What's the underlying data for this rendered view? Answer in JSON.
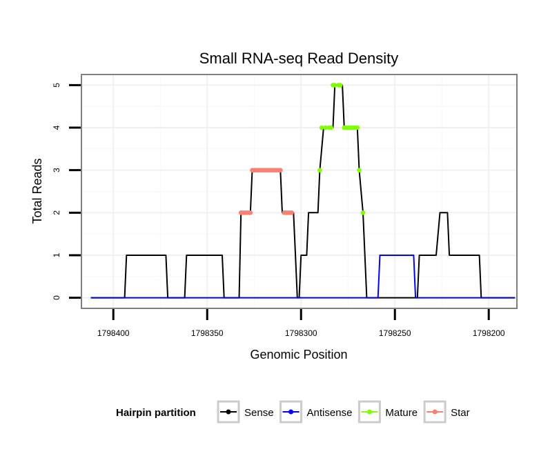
{
  "chart_data": {
    "type": "line",
    "title": "Small RNA-seq Read Density",
    "xlabel": "Genomic Position",
    "ylabel": "Total Reads",
    "xlim": [
      1798417,
      1798185
    ],
    "ylim": [
      -0.25,
      5.25
    ],
    "x_reversed": true,
    "xticks": [
      1798400,
      1798350,
      1798300,
      1798250,
      1798200
    ],
    "xtick_labels": [
      "1798400",
      "1798350",
      "1798300",
      "1798250",
      "1798200"
    ],
    "yticks": [
      0,
      1,
      2,
      3,
      4,
      5
    ],
    "ytick_labels": [
      "0",
      "1",
      "2",
      "3",
      "4",
      "5"
    ],
    "grid": true,
    "legend": {
      "title": "Hairpin partition",
      "placement": "bottom",
      "entries": [
        {
          "label": "Sense",
          "color": "#000000"
        },
        {
          "label": "Antisense",
          "color": "#0000ff"
        },
        {
          "label": "Mature",
          "color": "#7fff00"
        },
        {
          "label": "Star",
          "color": "#fa8072"
        }
      ]
    },
    "series": [
      {
        "name": "Sense",
        "color": "#000000",
        "points": [
          [
            1798412,
            0
          ],
          [
            1798394,
            0
          ],
          [
            1798393,
            1
          ],
          [
            1798372,
            1
          ],
          [
            1798371,
            0
          ],
          [
            1798362,
            0
          ],
          [
            1798361,
            1
          ],
          [
            1798342,
            1
          ],
          [
            1798341,
            0
          ],
          [
            1798333,
            0
          ],
          [
            1798332,
            2
          ],
          [
            1798327,
            2
          ],
          [
            1798326,
            3
          ],
          [
            1798311,
            3
          ],
          [
            1798310,
            2
          ],
          [
            1798304,
            2
          ],
          [
            1798303,
            1
          ],
          [
            1798302,
            0
          ],
          [
            1798301,
            0
          ],
          [
            1798300,
            1
          ],
          [
            1798297,
            1
          ],
          [
            1798296,
            2
          ],
          [
            1798291,
            2
          ],
          [
            1798290,
            3
          ],
          [
            1798288,
            4
          ],
          [
            1798283,
            4
          ],
          [
            1798282,
            5
          ],
          [
            1798278,
            5
          ],
          [
            1798277,
            4
          ],
          [
            1798270,
            4
          ],
          [
            1798269,
            3
          ],
          [
            1798267,
            2
          ],
          [
            1798265,
            0
          ],
          [
            1798238,
            0
          ],
          [
            1798237,
            1
          ],
          [
            1798228,
            1
          ],
          [
            1798226,
            2
          ],
          [
            1798222,
            2
          ],
          [
            1798221,
            1
          ],
          [
            1798205,
            1
          ],
          [
            1798204,
            0
          ],
          [
            1798186,
            0
          ]
        ]
      },
      {
        "name": "Antisense",
        "color": "#0000ff",
        "points": [
          [
            1798412,
            0
          ],
          [
            1798259,
            0
          ],
          [
            1798258,
            1
          ],
          [
            1798240,
            1
          ],
          [
            1798239,
            0
          ],
          [
            1798186,
            0
          ]
        ]
      },
      {
        "name": "Mature",
        "color": "#7fff00",
        "points": [
          [
            1798290,
            3
          ],
          [
            1798289,
            4
          ],
          [
            1798287,
            4
          ],
          [
            1798285,
            4
          ],
          [
            1798284,
            4
          ],
          [
            1798283,
            5
          ],
          [
            1798282,
            5
          ],
          [
            1798280,
            5
          ],
          [
            1798279,
            5
          ],
          [
            1798277,
            4
          ],
          [
            1798276,
            4
          ],
          [
            1798275,
            4
          ],
          [
            1798274,
            4
          ],
          [
            1798273,
            4
          ],
          [
            1798272,
            4
          ],
          [
            1798271,
            4
          ],
          [
            1798270,
            4
          ],
          [
            1798269,
            3
          ],
          [
            1798267,
            2
          ]
        ]
      },
      {
        "name": "Star",
        "color": "#fa8072",
        "points": [
          [
            1798332,
            2
          ],
          [
            1798331,
            2
          ],
          [
            1798330,
            2
          ],
          [
            1798329,
            2
          ],
          [
            1798328,
            2
          ],
          [
            1798327,
            2
          ],
          [
            1798326,
            3
          ],
          [
            1798325,
            3
          ],
          [
            1798324,
            3
          ],
          [
            1798323,
            3
          ],
          [
            1798322,
            3
          ],
          [
            1798321,
            3
          ],
          [
            1798320,
            3
          ],
          [
            1798319,
            3
          ],
          [
            1798318,
            3
          ],
          [
            1798317,
            3
          ],
          [
            1798316,
            3
          ],
          [
            1798315,
            3
          ],
          [
            1798314,
            3
          ],
          [
            1798313,
            3
          ],
          [
            1798312,
            3
          ],
          [
            1798311,
            3
          ],
          [
            1798309,
            2
          ],
          [
            1798308,
            2
          ],
          [
            1798307,
            2
          ],
          [
            1798306,
            2
          ],
          [
            1798305,
            2
          ]
        ]
      }
    ]
  }
}
